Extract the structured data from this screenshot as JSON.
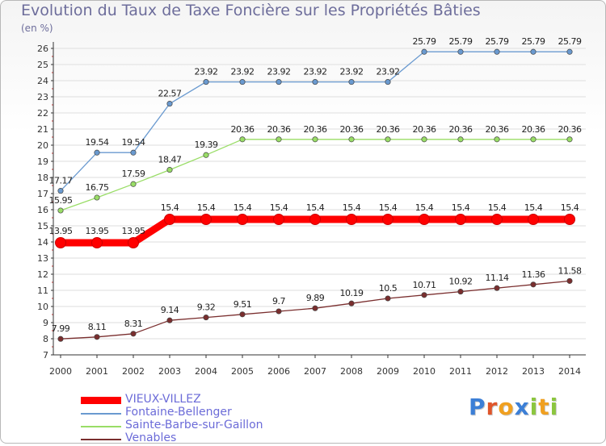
{
  "title": "Evolution du Taux de Taxe Foncière sur les Propriétés Bâties",
  "subtitle": "(en %)",
  "logo": "Proxiti",
  "chart_data": {
    "type": "line",
    "title": "Evolution du Taux de Taxe Foncière sur les Propriétés Bâties",
    "ylabel": "(en %)",
    "xlabel": "",
    "ylim": [
      7,
      26
    ],
    "yticks": [
      7,
      8,
      9,
      10,
      11,
      12,
      13,
      14,
      15,
      16,
      17,
      18,
      19,
      20,
      21,
      22,
      23,
      24,
      25,
      26
    ],
    "categories": [
      "2000",
      "2001",
      "2002",
      "2003",
      "2004",
      "2005",
      "2006",
      "2007",
      "2008",
      "2009",
      "2010",
      "2011",
      "2012",
      "2013",
      "2014"
    ],
    "series": [
      {
        "name": "VIEUX-VILLEZ",
        "color": "#ff0000",
        "values": [
          13.95,
          13.95,
          13.95,
          15.4,
          15.4,
          15.4,
          15.4,
          15.4,
          15.4,
          15.4,
          15.4,
          15.4,
          15.4,
          15.4,
          15.4
        ],
        "labels": [
          "13.95",
          "13.95",
          "13.95",
          "15.4",
          "15.4",
          "15.4",
          "15.4",
          "15.4",
          "15.4",
          "15.4",
          "15.4",
          "15.4",
          "15.4",
          "15.4",
          "15.4"
        ]
      },
      {
        "name": "Fontaine-Bellenger",
        "color": "#6a9ad0",
        "values": [
          17.17,
          19.54,
          19.54,
          22.57,
          23.92,
          23.92,
          23.92,
          23.92,
          23.92,
          23.92,
          25.79,
          25.79,
          25.79,
          25.79,
          25.79
        ],
        "labels": [
          "17.17",
          "19.54",
          "19.54",
          "22.57",
          "23.92",
          "23.92",
          "23.92",
          "23.92",
          "23.92",
          "23.92",
          "25.79",
          "25.79",
          "25.79",
          "25.79",
          "25.79"
        ]
      },
      {
        "name": "Sainte-Barbe-sur-Gaillon",
        "color": "#99dd66",
        "values": [
          15.95,
          16.75,
          17.59,
          18.47,
          19.39,
          20.36,
          20.36,
          20.36,
          20.36,
          20.36,
          20.36,
          20.36,
          20.36,
          20.36,
          20.36
        ],
        "labels": [
          "15.95",
          "16.75",
          "17.59",
          "18.47",
          "19.39",
          "20.36",
          "20.36",
          "20.36",
          "20.36",
          "20.36",
          "20.36",
          "20.36",
          "20.36",
          "20.36",
          "20.36"
        ]
      },
      {
        "name": "Venables",
        "color": "#7a2e2e",
        "values": [
          7.99,
          8.11,
          8.31,
          9.14,
          9.32,
          9.51,
          9.7,
          9.89,
          10.19,
          10.5,
          10.71,
          10.92,
          11.14,
          11.36,
          11.58
        ],
        "labels": [
          "7.99",
          "8.11",
          "8.31",
          "9.14",
          "9.32",
          "9.51",
          "9.7",
          "9.89",
          "10.19",
          "10.5",
          "10.71",
          "10.92",
          "11.14",
          "11.36",
          "11.58"
        ]
      }
    ],
    "legend": [
      "VIEUX-VILLEZ",
      "Fontaine-Bellenger",
      "Sainte-Barbe-sur-Gaillon",
      "Venables"
    ],
    "legend_position": "bottom-left"
  }
}
